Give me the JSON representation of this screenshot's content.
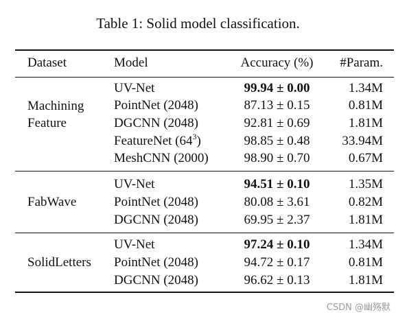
{
  "caption": "Table 1: Solid model classification.",
  "headers": {
    "dataset": "Dataset",
    "model": "Model",
    "accuracy": "Accuracy (%)",
    "params": "#Param."
  },
  "groups": [
    {
      "dataset_lines": [
        "Machining",
        "Feature"
      ],
      "rows": [
        {
          "model": "UV-Net",
          "accuracy": "99.94 ± 0.00",
          "params": "1.34M",
          "best": true
        },
        {
          "model": "PointNet (2048)",
          "accuracy": "87.13 ± 0.15",
          "params": "0.81M",
          "best": false
        },
        {
          "model": "DGCNN (2048)",
          "accuracy": "92.81 ± 0.69",
          "params": "1.81M",
          "best": false
        },
        {
          "model": "FeatureNet (64",
          "model_sup": "3",
          "model_suffix": ")",
          "accuracy": "98.85 ± 0.48",
          "params": "33.94M",
          "best": false
        },
        {
          "model": "MeshCNN (2000)",
          "accuracy": "98.90 ± 0.70",
          "params": "0.67M",
          "best": false
        }
      ]
    },
    {
      "dataset_lines": [
        "FabWave"
      ],
      "rows": [
        {
          "model": "UV-Net",
          "accuracy": "94.51 ± 0.10",
          "params": "1.35M",
          "best": true
        },
        {
          "model": "PointNet (2048)",
          "accuracy": "80.08 ± 3.61",
          "params": "0.82M",
          "best": false
        },
        {
          "model": "DGCNN (2048)",
          "accuracy": "69.95 ± 2.37",
          "params": "1.81M",
          "best": false
        }
      ]
    },
    {
      "dataset_lines": [
        "SolidLetters"
      ],
      "rows": [
        {
          "model": "UV-Net",
          "accuracy": "97.24 ± 0.10",
          "params": "1.34M",
          "best": true
        },
        {
          "model": "PointNet (2048)",
          "accuracy": "94.72 ± 0.17",
          "params": "0.81M",
          "best": false
        },
        {
          "model": "DGCNN (2048)",
          "accuracy": "96.62 ± 0.13",
          "params": "1.81M",
          "best": false
        }
      ]
    }
  ],
  "watermark": "CSDN @幽殇默"
}
